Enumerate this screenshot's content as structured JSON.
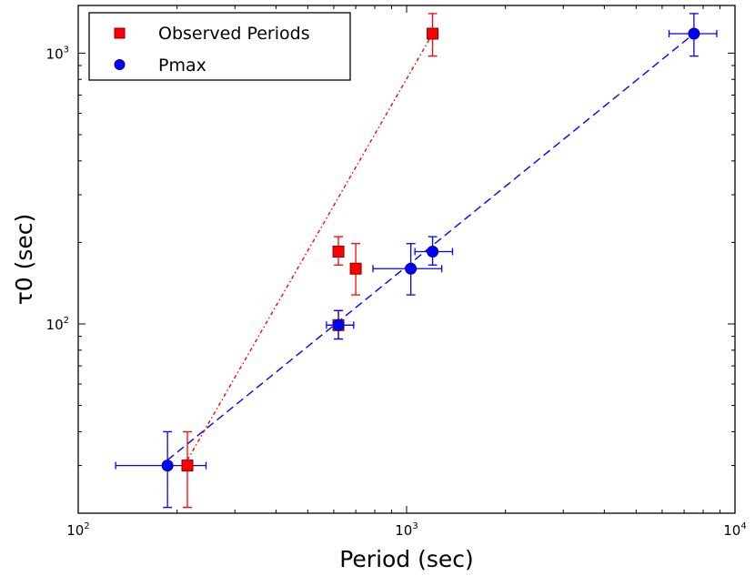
{
  "chart_data": {
    "type": "scatter",
    "xscale": "log",
    "yscale": "log",
    "xlim": [
      100,
      10000
    ],
    "ylim": [
      20,
      1500
    ],
    "xlabel": "Period (sec)",
    "ylabel": "τ0 (sec)",
    "xticks": [
      {
        "value": 100,
        "base": "10",
        "exp": "2"
      },
      {
        "value": 1000,
        "base": "10",
        "exp": "3"
      },
      {
        "value": 10000,
        "base": "10",
        "exp": "4"
      }
    ],
    "yticks": [
      {
        "value": 100,
        "base": "10",
        "exp": "2"
      },
      {
        "value": 1000,
        "base": "10",
        "exp": "3"
      }
    ],
    "legend": {
      "position": "top-left"
    },
    "series": [
      {
        "name": "Observed Periods",
        "marker": "square",
        "color": "#ff0000",
        "line_style": "dash-dot",
        "points": [
          {
            "x": 215,
            "y": 30,
            "ylo": 21,
            "yhi": 40
          },
          {
            "x": 620,
            "y": 185,
            "ylo": 165,
            "yhi": 210
          },
          {
            "x": 620,
            "y": 99,
            "ylo": 88,
            "yhi": 112
          },
          {
            "x": 700,
            "y": 160,
            "ylo": 128,
            "yhi": 198
          },
          {
            "x": 1200,
            "y": 1180,
            "ylo": 975,
            "yhi": 1400
          }
        ]
      },
      {
        "name": "Pmax",
        "marker": "circle",
        "color": "#0000ff",
        "line_style": "dashed",
        "points": [
          {
            "x": 187,
            "y": 30,
            "xlo": 130,
            "xhi": 245,
            "ylo": 21,
            "yhi": 40
          },
          {
            "x": 620,
            "y": 99,
            "xlo": 570,
            "xhi": 690,
            "ylo": 88,
            "yhi": 112
          },
          {
            "x": 1030,
            "y": 160,
            "xlo": 790,
            "xhi": 1280,
            "ylo": 128,
            "yhi": 198
          },
          {
            "x": 1200,
            "y": 185,
            "xlo": 1060,
            "xhi": 1380,
            "ylo": 165,
            "yhi": 210
          },
          {
            "x": 7500,
            "y": 1180,
            "xlo": 6300,
            "xhi": 8800,
            "ylo": 975,
            "yhi": 1400
          }
        ]
      }
    ]
  }
}
